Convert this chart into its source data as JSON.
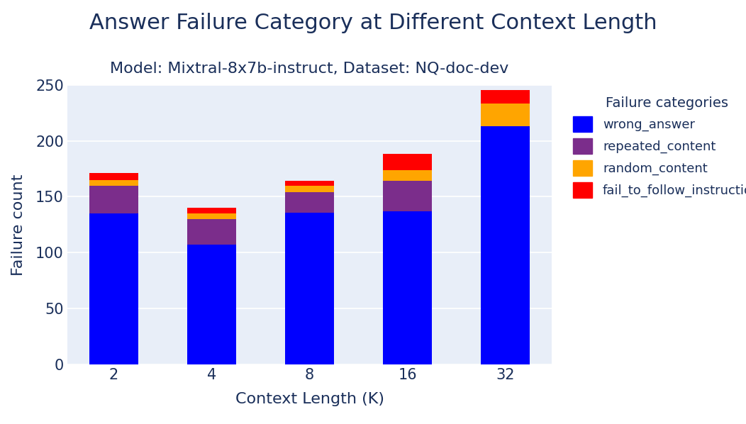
{
  "title": "Answer Failure Category at Different Context Length",
  "subtitle": "Model: Mixtral-8x7b-instruct, Dataset: NQ-doc-dev",
  "xlabel": "Context Length (K)",
  "ylabel": "Failure count",
  "categories": [
    "2",
    "4",
    "8",
    "16",
    "32"
  ],
  "series": {
    "wrong_answer": [
      135,
      107,
      136,
      137,
      213
    ],
    "repeated_content": [
      25,
      23,
      18,
      27,
      0
    ],
    "random_content": [
      5,
      5,
      6,
      10,
      20
    ],
    "fail_to_follow_instruction": [
      6,
      5,
      4,
      14,
      12
    ]
  },
  "colors": {
    "wrong_answer": "#0000ff",
    "repeated_content": "#7b2d8b",
    "random_content": "#ffa500",
    "fail_to_follow_instruction": "#ff0000"
  },
  "legend_title": "Failure categories",
  "ylim": [
    0,
    250
  ],
  "yticks": [
    0,
    50,
    100,
    150,
    200,
    250
  ],
  "background_color": "#e8eef8",
  "title_color": "#1a2f5a",
  "subtitle_color": "#1a2f5a",
  "axis_color": "#1a2f5a",
  "tick_color": "#1a2f5a",
  "bar_width": 0.5,
  "title_fontsize": 22,
  "subtitle_fontsize": 16,
  "label_fontsize": 16,
  "tick_fontsize": 15,
  "legend_fontsize": 13,
  "legend_title_fontsize": 14
}
